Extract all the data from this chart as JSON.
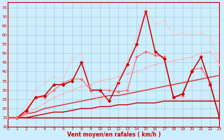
{
  "background_color": "#cceeff",
  "grid_color": "#aacccc",
  "xlabel": "Vent moyen/en rafales ( km/h )",
  "xlabel_color": "#cc0000",
  "ylabel_ticks": [
    10,
    15,
    20,
    25,
    30,
    35,
    40,
    45,
    50,
    55,
    60,
    65,
    70,
    75
  ],
  "xticks": [
    0,
    1,
    2,
    3,
    4,
    5,
    6,
    7,
    8,
    9,
    10,
    11,
    12,
    13,
    14,
    15,
    16,
    17,
    18,
    19,
    20,
    21,
    22,
    23
  ],
  "xlim": [
    0,
    23
  ],
  "ylim": [
    10,
    78
  ],
  "series": [
    {
      "x": [
        0,
        1,
        2,
        3,
        4,
        5,
        6,
        7,
        8,
        9,
        10,
        11,
        12,
        13,
        14,
        15,
        16,
        17,
        18,
        19,
        20,
        21,
        22,
        23
      ],
      "y": [
        15,
        15,
        15,
        15,
        15,
        15,
        15,
        15,
        15,
        15,
        15,
        15,
        15,
        15,
        15,
        15,
        15,
        15,
        15,
        15,
        15,
        15,
        15,
        15
      ],
      "color": "#990000",
      "marker": null,
      "linewidth": 1.0,
      "alpha": 1.0
    },
    {
      "x": [
        0,
        1,
        2,
        3,
        4,
        5,
        6,
        7,
        8,
        9,
        10,
        11,
        12,
        13,
        14,
        15,
        16,
        17,
        18,
        19,
        20,
        21,
        22,
        23
      ],
      "y": [
        15,
        15,
        15,
        16,
        17,
        18,
        18,
        19,
        20,
        20,
        21,
        21,
        22,
        22,
        23,
        23,
        23,
        24,
        24,
        24,
        24,
        24,
        24,
        24
      ],
      "color": "#cc0000",
      "marker": null,
      "linewidth": 1.0,
      "alpha": 1.0
    },
    {
      "x": [
        0,
        1,
        2,
        3,
        4,
        5,
        6,
        7,
        8,
        9,
        10,
        11,
        12,
        13,
        14,
        15,
        16,
        17,
        18,
        19,
        20,
        21,
        22,
        23
      ],
      "y": [
        15,
        15,
        17,
        18,
        20,
        21,
        22,
        23,
        24,
        25,
        26,
        27,
        27,
        28,
        29,
        30,
        31,
        32,
        33,
        34,
        35,
        36,
        37,
        38
      ],
      "color": "#dd3333",
      "marker": null,
      "linewidth": 1.0,
      "alpha": 1.0
    },
    {
      "x": [
        0,
        1,
        2,
        3,
        4,
        5,
        6,
        7,
        8,
        9,
        10,
        11,
        12,
        13,
        14,
        15,
        16,
        17,
        18,
        19,
        20,
        21,
        22,
        23
      ],
      "y": [
        15,
        15,
        17,
        20,
        23,
        26,
        28,
        30,
        32,
        33,
        35,
        36,
        37,
        39,
        40,
        42,
        44,
        45,
        46,
        47,
        48,
        50,
        51,
        44
      ],
      "color": "#ffaaaa",
      "marker": "D",
      "linewidth": 0.8,
      "alpha": 0.7,
      "markersize": 2.0
    },
    {
      "x": [
        0,
        1,
        2,
        3,
        4,
        5,
        6,
        7,
        8,
        9,
        10,
        11,
        12,
        13,
        14,
        15,
        16,
        17,
        18,
        19,
        20,
        21,
        22,
        23
      ],
      "y": [
        15,
        15,
        18,
        26,
        26,
        30,
        34,
        36,
        36,
        30,
        30,
        30,
        29,
        30,
        48,
        51,
        49,
        48,
        26,
        27,
        41,
        42,
        34,
        15
      ],
      "color": "#ff6666",
      "marker": "D",
      "linewidth": 0.9,
      "alpha": 0.85,
      "markersize": 2.5
    },
    {
      "x": [
        0,
        1,
        2,
        3,
        4,
        5,
        6,
        7,
        8,
        9,
        10,
        11,
        12,
        13,
        14,
        15,
        16,
        17,
        18,
        19,
        20,
        21,
        22,
        23
      ],
      "y": [
        15,
        15,
        19,
        26,
        27,
        33,
        33,
        35,
        45,
        30,
        30,
        24,
        34,
        44,
        55,
        73,
        51,
        47,
        26,
        28,
        40,
        48,
        33,
        15
      ],
      "color": "#cc0000",
      "marker": "D",
      "linewidth": 1.1,
      "alpha": 1.0,
      "markersize": 2.8
    },
    {
      "x": [
        0,
        1,
        2,
        3,
        4,
        5,
        6,
        7,
        8,
        9,
        10,
        11,
        12,
        13,
        14,
        15,
        16,
        17,
        18,
        19,
        20,
        21,
        22,
        23
      ],
      "y": [
        15,
        15,
        22,
        30,
        34,
        37,
        36,
        47,
        50,
        30,
        23,
        31,
        35,
        46,
        60,
        74,
        66,
        68,
        60,
        61,
        60,
        61,
        59,
        44
      ],
      "color": "#ffbbbb",
      "marker": "D",
      "linewidth": 0.8,
      "alpha": 0.6,
      "markersize": 2.0
    }
  ]
}
